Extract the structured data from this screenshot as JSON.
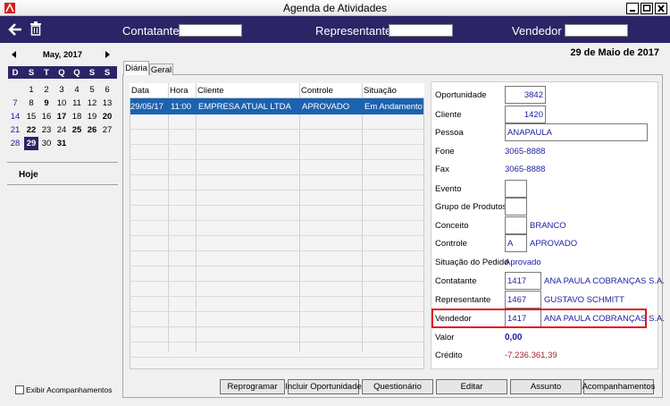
{
  "window": {
    "title": "Agenda de Atividades"
  },
  "toolbar": {
    "labels": [
      "Contatante",
      "Representante",
      "Vendedor"
    ]
  },
  "calendar": {
    "month": "May, 2017",
    "weekdays": [
      "D",
      "S",
      "T",
      "Q",
      "Q",
      "S",
      "S"
    ],
    "weeks": [
      [
        null,
        1,
        2,
        3,
        4,
        5,
        6
      ],
      [
        7,
        8,
        9,
        10,
        11,
        12,
        13
      ],
      [
        14,
        15,
        16,
        17,
        18,
        19,
        20
      ],
      [
        21,
        22,
        23,
        24,
        25,
        26,
        27
      ],
      [
        28,
        29,
        30,
        31,
        null,
        null,
        null
      ]
    ],
    "bold_days": [
      9,
      17,
      20,
      22,
      25,
      26,
      31
    ],
    "selected_day": 29
  },
  "today": "Hoje",
  "show_followups": "Exibir Acompanhamentos",
  "date_heading": "29 de Maio de 2017",
  "tabs": [
    "Diária",
    "Geral"
  ],
  "table": {
    "columns": [
      "Data",
      "Hora",
      "Cliente",
      "Controle",
      "Situação"
    ],
    "rows": [
      [
        "29/05/17",
        "11:00",
        "EMPRESA ATUAL LTDA",
        "APROVADO",
        "Em Andamento"
      ]
    ]
  },
  "form": {
    "fields": [
      {
        "label": "Oportunidade",
        "input": "3842"
      },
      {
        "label": "Cliente",
        "input": "1420"
      },
      {
        "label": "Pessoa",
        "input": "ANAPAULA"
      },
      {
        "label": "Fone",
        "text": "3065-8888"
      },
      {
        "label": "Fax",
        "text": "3065-8888"
      },
      {
        "label": "Evento",
        "input": null
      },
      {
        "label": "Grupo de Produtos",
        "input": null
      },
      {
        "label": "Conceito",
        "input": null,
        "text": "BRANCO"
      },
      {
        "label": "Controle",
        "input": "A",
        "text": "APROVADO"
      },
      {
        "label": "Situação do Pedido",
        "text": "Aprovado"
      },
      {
        "label": "Contatante",
        "input": "1417",
        "text": "ANA PAULA COBRANÇAS S.A."
      },
      {
        "label": "Representante",
        "input": "1467",
        "text": "GUSTAVO SCHMITT"
      },
      {
        "label": "Vendedor",
        "input": "1417",
        "text": "ANA PAULA COBRANÇAS S.A."
      },
      {
        "label": "Valor",
        "text": "0,00"
      },
      {
        "label": "Crédito",
        "text": "-7.236.361,39"
      }
    ]
  },
  "buttons": [
    "Reprogramar",
    "Incluir Oportunidade",
    "Questionário",
    "Editar",
    "Assunto",
    "Acompanhamentos"
  ]
}
